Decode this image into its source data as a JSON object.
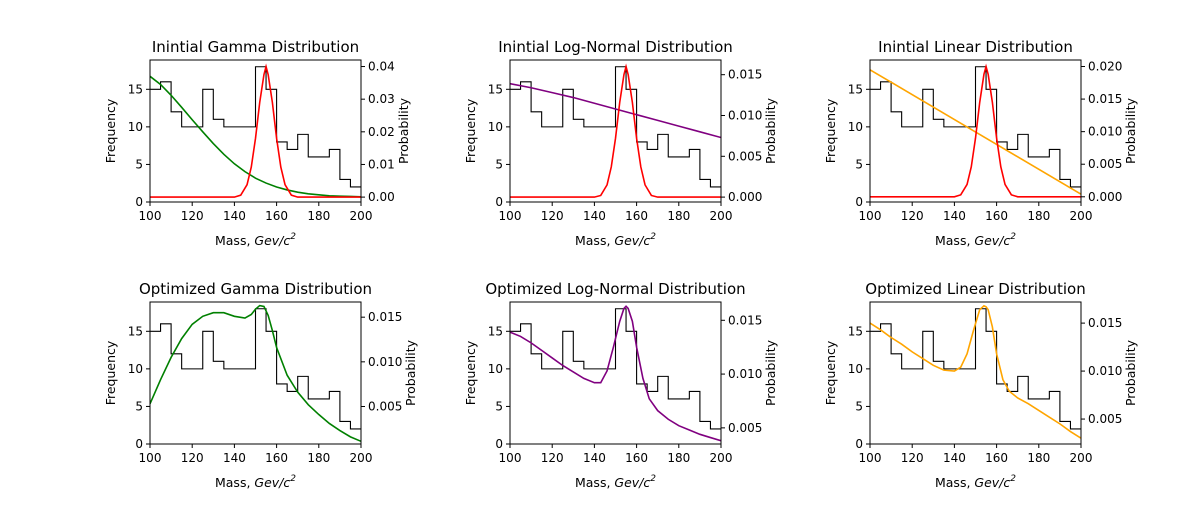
{
  "chart_data": {
    "type": "line",
    "x_range": [
      100,
      200
    ],
    "x_ticks": [
      100,
      120,
      140,
      160,
      180,
      200
    ],
    "y_left_range": [
      0,
      18.9
    ],
    "y_left_ticks": [
      0,
      5,
      10,
      15
    ],
    "xlabel_prefix": "Mass, ",
    "xlabel_unit": "Gev/c",
    "xlabel_exp": "2",
    "ylabel_left": "Frequency",
    "ylabel_right": "Probability",
    "histogram": {
      "color": "#000000",
      "bin_edges": [
        100,
        105,
        110,
        115,
        120,
        125,
        130,
        135,
        140,
        145,
        150,
        155,
        160,
        165,
        170,
        175,
        180,
        185,
        190,
        195,
        200
      ],
      "counts": [
        15,
        16,
        12,
        10,
        10,
        15,
        11,
        10,
        10,
        10,
        18,
        15,
        8,
        7,
        9,
        6,
        6,
        7,
        3,
        2
      ]
    },
    "panels": [
      {
        "title": "Inintial Gamma Distribution",
        "right_range": [
          -0.0015,
          0.042
        ],
        "right_ticks": [
          "0.00",
          "0.01",
          "0.02",
          "0.03",
          "0.04"
        ],
        "right_tick_values": [
          0.0,
          0.01,
          0.02,
          0.03,
          0.04
        ],
        "series": [
          {
            "color": "#008000",
            "x": [
              100,
              105,
              110,
              115,
              120,
              125,
              130,
              135,
              140,
              145,
              150,
              155,
              160,
              165,
              170,
              175,
              180,
              185,
              190,
              195,
              200
            ],
            "y": [
              0.037,
              0.0345,
              0.0312,
              0.0275,
              0.0237,
              0.02,
              0.0164,
              0.0131,
              0.0102,
              0.0078,
              0.0058,
              0.0043,
              0.0031,
              0.0022,
              0.0015,
              0.001,
              0.0007,
              0.0004,
              0.0003,
              0.0002,
              0.0001
            ]
          },
          {
            "color": "#ff0000",
            "x": [
              100,
              140,
              143,
              146,
              148,
              150,
              152,
              154,
              155,
              156,
              158,
              160,
              162,
              164,
              167,
              170,
              200
            ],
            "y": [
              0.0,
              0.0,
              0.0006,
              0.0038,
              0.0092,
              0.018,
              0.029,
              0.0375,
              0.04,
              0.0375,
              0.029,
              0.018,
              0.0092,
              0.0038,
              0.0006,
              0.0,
              0.0
            ]
          }
        ]
      },
      {
        "title": "Inintial Log-Normal Distribution",
        "right_range": [
          -0.0006,
          0.0168
        ],
        "right_ticks": [
          "0.000",
          "0.005",
          "0.010",
          "0.015"
        ],
        "right_tick_values": [
          0.0,
          0.005,
          0.01,
          0.015
        ],
        "series": [
          {
            "color": "#800080",
            "x": [
              100,
              110,
              120,
              130,
              140,
              150,
              160,
              170,
              180,
              190,
              200
            ],
            "y": [
              0.0139,
              0.0134,
              0.0128,
              0.0122,
              0.0115,
              0.0108,
              0.0101,
              0.0094,
              0.0087,
              0.008,
              0.0073
            ]
          },
          {
            "color": "#ff0000",
            "x": [
              100,
              140,
              143,
              146,
              148,
              150,
              152,
              154,
              155,
              156,
              158,
              160,
              162,
              164,
              167,
              170,
              200
            ],
            "y": [
              0.0,
              0.0,
              0.0002,
              0.0015,
              0.0037,
              0.0072,
              0.0116,
              0.015,
              0.016,
              0.015,
              0.0116,
              0.0072,
              0.0037,
              0.0015,
              0.0002,
              0.0,
              0.0
            ]
          }
        ]
      },
      {
        "title": "Inintial Linear Distribution",
        "right_range": [
          -0.0008,
          0.021
        ],
        "right_ticks": [
          "0.000",
          "0.005",
          "0.010",
          "0.015",
          "0.020"
        ],
        "right_tick_values": [
          0.0,
          0.005,
          0.01,
          0.015,
          0.02
        ],
        "series": [
          {
            "color": "#ffa500",
            "x": [
              100,
              200
            ],
            "y": [
              0.0195,
              0.0004
            ]
          },
          {
            "color": "#ff0000",
            "x": [
              100,
              140,
              143,
              146,
              148,
              150,
              152,
              154,
              155,
              156,
              158,
              160,
              162,
              164,
              167,
              170,
              200
            ],
            "y": [
              0.0,
              0.0,
              0.0003,
              0.0019,
              0.0046,
              0.009,
              0.0145,
              0.0188,
              0.02,
              0.0188,
              0.0145,
              0.009,
              0.0046,
              0.0019,
              0.0003,
              0.0,
              0.0
            ]
          }
        ]
      },
      {
        "title": "Optimized Gamma Distribution",
        "right_range": [
          0.0008,
          0.0167
        ],
        "right_ticks": [
          "0.005",
          "0.010",
          "0.015"
        ],
        "right_tick_values": [
          0.005,
          0.01,
          0.015
        ],
        "series": [
          {
            "color": "#008000",
            "x": [
              100,
              105,
              110,
              115,
              120,
              125,
              130,
              135,
              140,
              145,
              148,
              150,
              152,
              154,
              156,
              158,
              160,
              165,
              170,
              175,
              180,
              185,
              190,
              195,
              200
            ],
            "y": [
              0.0053,
              0.008,
              0.0105,
              0.0126,
              0.0142,
              0.0151,
              0.0155,
              0.0155,
              0.0151,
              0.0149,
              0.0153,
              0.0159,
              0.0163,
              0.0162,
              0.0152,
              0.0135,
              0.0116,
              0.0085,
              0.0066,
              0.0052,
              0.0041,
              0.0031,
              0.0023,
              0.0016,
              0.0011
            ]
          }
        ]
      },
      {
        "title": "Optimized Log-Normal Distribution",
        "right_range": [
          0.0035,
          0.0167
        ],
        "right_ticks": [
          "0.005",
          "0.010",
          "0.015"
        ],
        "right_tick_values": [
          0.005,
          0.01,
          0.015
        ],
        "series": [
          {
            "color": "#800080",
            "x": [
              100,
              105,
              110,
              115,
              120,
              125,
              130,
              135,
              140,
              143,
              146,
              149,
              152,
              154,
              155,
              156,
              158,
              160,
              163,
              166,
              170,
              175,
              180,
              185,
              190,
              195,
              200
            ],
            "y": [
              0.0139,
              0.0135,
              0.0129,
              0.0122,
              0.0115,
              0.0108,
              0.0102,
              0.0096,
              0.0092,
              0.0092,
              0.0103,
              0.0125,
              0.0149,
              0.0161,
              0.0163,
              0.0161,
              0.0149,
              0.0125,
              0.0096,
              0.0077,
              0.0066,
              0.0058,
              0.0052,
              0.0048,
              0.0044,
              0.0041,
              0.0038
            ]
          }
        ]
      },
      {
        "title": "Optimized Linear Distribution",
        "right_range": [
          0.0024,
          0.0172
        ],
        "right_ticks": [
          "0.005",
          "0.010",
          "0.015"
        ],
        "right_tick_values": [
          0.005,
          0.01,
          0.015
        ],
        "series": [
          {
            "color": "#ffa500",
            "x": [
              100,
              105,
              110,
              115,
              120,
              125,
              130,
              135,
              140,
              143,
              146,
              149,
              152,
              154,
              155,
              156,
              158,
              160,
              163,
              166,
              170,
              175,
              180,
              185,
              190,
              195,
              200
            ],
            "y": [
              0.015,
              0.0143,
              0.0135,
              0.0128,
              0.012,
              0.0113,
              0.0106,
              0.0101,
              0.01,
              0.0104,
              0.0118,
              0.0142,
              0.0164,
              0.0168,
              0.0167,
              0.0164,
              0.0146,
              0.0118,
              0.0091,
              0.0079,
              0.0072,
              0.0066,
              0.0059,
              0.0052,
              0.0045,
              0.0037,
              0.003
            ]
          }
        ]
      }
    ]
  }
}
